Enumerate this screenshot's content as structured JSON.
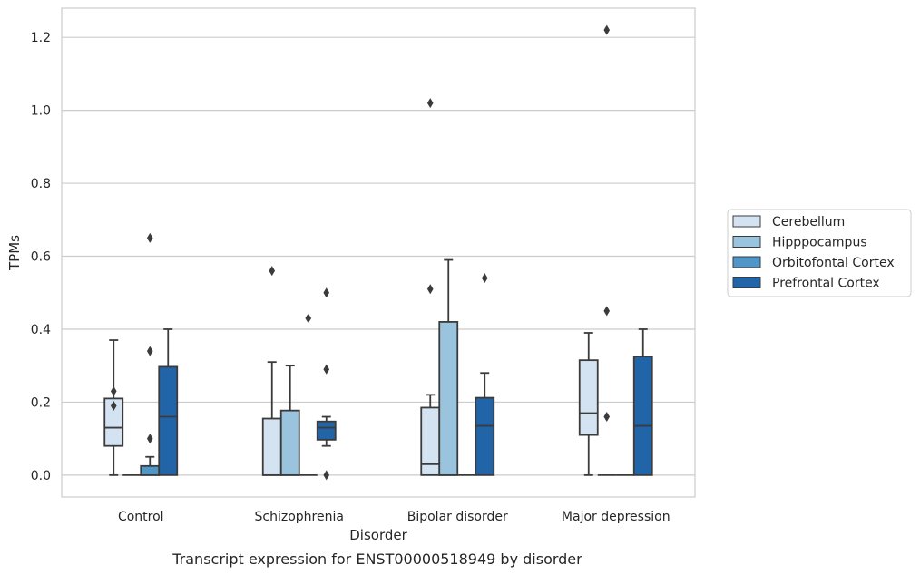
{
  "chart_data": {
    "type": "box",
    "title": "",
    "caption": "Transcript expression for ENST00000518949 by disorder",
    "xlabel": "Disorder",
    "ylabel": "TPMs",
    "ylim": [
      -0.06,
      1.28
    ],
    "yticks": [
      0.0,
      0.2,
      0.4,
      0.6,
      0.8,
      1.0,
      1.2
    ],
    "ytick_labels": [
      "0.0",
      "0.2",
      "0.4",
      "0.6",
      "0.8",
      "1.0",
      "1.2"
    ],
    "grid": true,
    "legend_position": "right",
    "categories": [
      "Control",
      "Schizophrenia",
      "Bipolar disorder",
      "Major depression"
    ],
    "series": [
      {
        "name": "Cerebellum",
        "color": "#d4e3f2",
        "boxes": [
          {
            "whislo": 0.0,
            "q1": 0.08,
            "median": 0.13,
            "q3": 0.21,
            "whishi": 0.37,
            "fliers": [
              0.23,
              0.19
            ]
          },
          {
            "whislo": 0.0,
            "q1": 0.0,
            "median": 0.0,
            "q3": 0.155,
            "whishi": 0.31,
            "fliers": [
              0.56
            ]
          },
          {
            "whislo": 0.0,
            "q1": 0.0,
            "median": 0.03,
            "q3": 0.185,
            "whishi": 0.22,
            "fliers": [
              1.02,
              0.51
            ]
          },
          {
            "whislo": 0.0,
            "q1": 0.11,
            "median": 0.17,
            "q3": 0.315,
            "whishi": 0.39,
            "fliers": []
          }
        ]
      },
      {
        "name": "Hipppocampus",
        "color": "#9ac4dd",
        "boxes": [
          {
            "whislo": 0.0,
            "q1": 0.0,
            "median": 0.0,
            "q3": 0.0,
            "whishi": 0.0,
            "fliers": []
          },
          {
            "whislo": 0.0,
            "q1": 0.0,
            "median": 0.0,
            "q3": 0.177,
            "whishi": 0.3,
            "fliers": []
          },
          {
            "whislo": 0.0,
            "q1": 0.0,
            "median": 0.0,
            "q3": 0.42,
            "whishi": 0.59,
            "fliers": []
          },
          {
            "whislo": 0.0,
            "q1": 0.0,
            "median": 0.0,
            "q3": 0.0,
            "whishi": 0.0,
            "fliers": [
              1.22,
              0.45,
              0.16
            ]
          }
        ]
      },
      {
        "name": "Orbitofontal Cortex",
        "color": "#5096c6",
        "boxes": [
          {
            "whislo": 0.0,
            "q1": 0.0,
            "median": 0.0,
            "q3": 0.025,
            "whishi": 0.05,
            "fliers": [
              0.65,
              0.34,
              0.1
            ]
          },
          {
            "whislo": 0.0,
            "q1": 0.0,
            "median": 0.0,
            "q3": 0.0,
            "whishi": 0.0,
            "fliers": [
              0.43
            ]
          },
          {
            "whislo": 0.0,
            "q1": 0.0,
            "median": 0.0,
            "q3": 0.0,
            "whishi": 0.0,
            "fliers": []
          },
          {
            "whislo": 0.0,
            "q1": 0.0,
            "median": 0.0,
            "q3": 0.0,
            "whishi": 0.0,
            "fliers": []
          }
        ]
      },
      {
        "name": "Prefrontal Cortex",
        "color": "#2264a8",
        "boxes": [
          {
            "whislo": 0.0,
            "q1": 0.0,
            "median": 0.16,
            "q3": 0.297,
            "whishi": 0.4,
            "fliers": []
          },
          {
            "whislo": 0.08,
            "q1": 0.097,
            "median": 0.13,
            "q3": 0.147,
            "whishi": 0.16,
            "fliers": [
              0.5,
              0.29,
              0.0
            ]
          },
          {
            "whislo": 0.0,
            "q1": 0.0,
            "median": 0.135,
            "q3": 0.212,
            "whishi": 0.28,
            "fliers": [
              0.54
            ]
          },
          {
            "whislo": 0.0,
            "q1": 0.0,
            "median": 0.135,
            "q3": 0.325,
            "whishi": 0.4,
            "fliers": []
          }
        ]
      }
    ]
  }
}
